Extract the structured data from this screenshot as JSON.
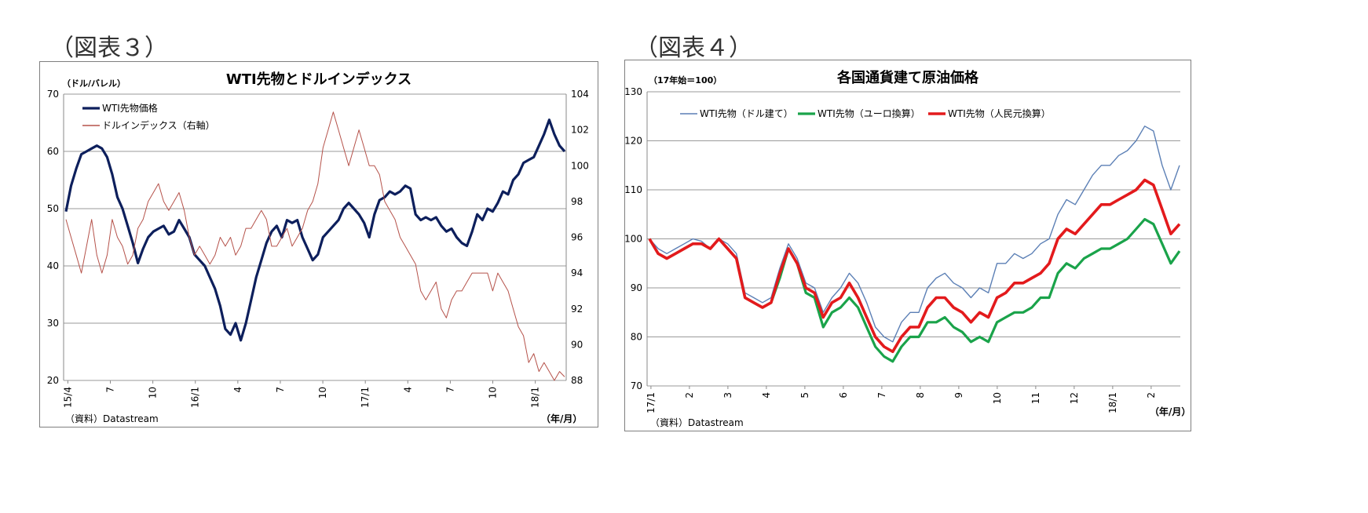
{
  "figure3": {
    "label": "（図表３）",
    "source": "（資料）Datastream",
    "xaxis_unit": "（年/月）",
    "chart_data": {
      "type": "line",
      "title": "WTI先物とドルインデックス",
      "ylabel": "（ドル/バレル）",
      "ylim": [
        20,
        70
      ],
      "y_ticks": [
        20,
        30,
        40,
        50,
        60,
        70
      ],
      "y2lim": [
        88,
        104
      ],
      "y2_ticks": [
        88,
        90,
        92,
        94,
        96,
        98,
        100,
        102,
        104
      ],
      "x_ticks": [
        "15/4",
        "7",
        "10",
        "16/1",
        "4",
        "7",
        "10",
        "17/1",
        "4",
        "7",
        "10",
        "18/1"
      ],
      "legend_position": "top-left",
      "grid": "horizontal",
      "series": [
        {
          "name": "WTI先物価格",
          "axis": "left",
          "color": "#0d1f5c",
          "values": [
            49.5,
            54,
            57,
            59.5,
            60,
            60.5,
            61,
            60.5,
            59,
            56,
            52,
            50,
            47,
            44,
            40.5,
            43,
            45,
            46,
            46.5,
            47,
            45.5,
            46,
            48,
            46.5,
            45,
            42,
            41,
            40,
            38,
            36,
            33,
            29,
            28,
            30,
            27,
            30,
            34,
            38,
            41,
            44,
            46,
            47,
            45,
            48,
            47.5,
            48,
            45,
            43,
            41,
            42,
            45,
            46,
            47,
            48,
            50,
            51,
            50,
            49,
            47.5,
            45,
            49,
            51.5,
            52,
            53,
            52.5,
            53,
            54,
            53.5,
            49,
            48,
            48.5,
            48,
            48.5,
            47,
            46,
            46.5,
            45,
            44,
            43.5,
            46,
            49,
            48,
            50,
            49.5,
            51,
            53,
            52.5,
            55,
            56,
            58,
            58.5,
            59,
            61,
            63,
            65.5,
            63,
            61,
            60
          ]
        },
        {
          "name": "ドルインデックス（右軸）",
          "axis": "right",
          "color": "#b5524a",
          "values": [
            97,
            96,
            95,
            94,
            95.5,
            97,
            95,
            94,
            95,
            97,
            96,
            95.5,
            94.5,
            95,
            96.5,
            97,
            98,
            98.5,
            99,
            98,
            97.5,
            98,
            98.5,
            97.5,
            96,
            95,
            95.5,
            95,
            94.5,
            95,
            96,
            95.5,
            96,
            95,
            95.5,
            96.5,
            96.5,
            97,
            97.5,
            97,
            95.5,
            95.5,
            96,
            96.5,
            95.5,
            96,
            96.5,
            97.5,
            98,
            99,
            101,
            102,
            103,
            102,
            101,
            100,
            101,
            102,
            101,
            100,
            100,
            99.5,
            98,
            97.5,
            97,
            96,
            95.5,
            95,
            94.5,
            93,
            92.5,
            93,
            93.5,
            92,
            91.5,
            92.5,
            93,
            93,
            93.5,
            94,
            94,
            94,
            94,
            93,
            94,
            93.5,
            93,
            92,
            91,
            90.5,
            89,
            89.5,
            88.5,
            89,
            88.5,
            88,
            88.5,
            88.2
          ]
        }
      ]
    }
  },
  "figure4": {
    "label": "（図表４）",
    "source": "（資料）Datastream",
    "xaxis_unit": "（年/月）",
    "chart_data": {
      "type": "line",
      "title": "各国通貨建て原油価格",
      "ylabel": "（17年始＝100）",
      "ylim": [
        70,
        130
      ],
      "y_ticks": [
        70,
        80,
        90,
        100,
        110,
        120,
        130
      ],
      "x_ticks": [
        "17/1",
        "2",
        "3",
        "4",
        "5",
        "6",
        "7",
        "8",
        "9",
        "10",
        "11",
        "12",
        "18/1",
        "2"
      ],
      "legend_position": "top",
      "grid": "horizontal",
      "series": [
        {
          "name": "WTI先物（ドル建て）",
          "color": "#5b7fb5",
          "values": [
            100,
            98,
            97,
            98,
            99,
            100,
            99.5,
            98,
            100,
            99,
            97,
            89,
            88,
            87,
            88,
            94,
            99,
            96,
            91,
            90,
            85,
            88,
            90,
            93,
            91,
            87,
            82,
            80,
            79,
            83,
            85,
            85,
            90,
            92,
            93,
            91,
            90,
            88,
            90,
            89,
            95,
            95,
            97,
            96,
            97,
            99,
            100,
            105,
            108,
            107,
            110,
            113,
            115,
            115,
            117,
            118,
            120,
            123,
            122,
            115,
            110,
            115
          ]
        },
        {
          "name": "WTI先物（ユーロ換算）",
          "color": "#1aa34a",
          "values": [
            100,
            97,
            96,
            97,
            98,
            99,
            99,
            98,
            100,
            98,
            96,
            88,
            87,
            86,
            87,
            92,
            98,
            95,
            89,
            88,
            82,
            85,
            86,
            88,
            86,
            82,
            78,
            76,
            75,
            78,
            80,
            80,
            83,
            83,
            84,
            82,
            81,
            79,
            80,
            79,
            83,
            84,
            85,
            85,
            86,
            88,
            88,
            93,
            95,
            94,
            96,
            97,
            98,
            98,
            99,
            100,
            102,
            104,
            103,
            99,
            95,
            97.5
          ]
        },
        {
          "name": "WTI先物（人民元換算）",
          "color": "#e31a1c",
          "values": [
            100,
            97,
            96,
            97,
            98,
            99,
            99,
            98,
            100,
            98,
            96,
            88,
            87,
            86,
            87,
            93,
            98,
            95,
            90,
            89,
            84,
            87,
            88,
            91,
            88,
            84,
            80,
            78,
            77,
            80,
            82,
            82,
            86,
            88,
            88,
            86,
            85,
            83,
            85,
            84,
            88,
            89,
            91,
            91,
            92,
            93,
            95,
            100,
            102,
            101,
            103,
            105,
            107,
            107,
            108,
            109,
            110,
            112,
            111,
            106,
            101,
            103
          ]
        }
      ]
    }
  }
}
